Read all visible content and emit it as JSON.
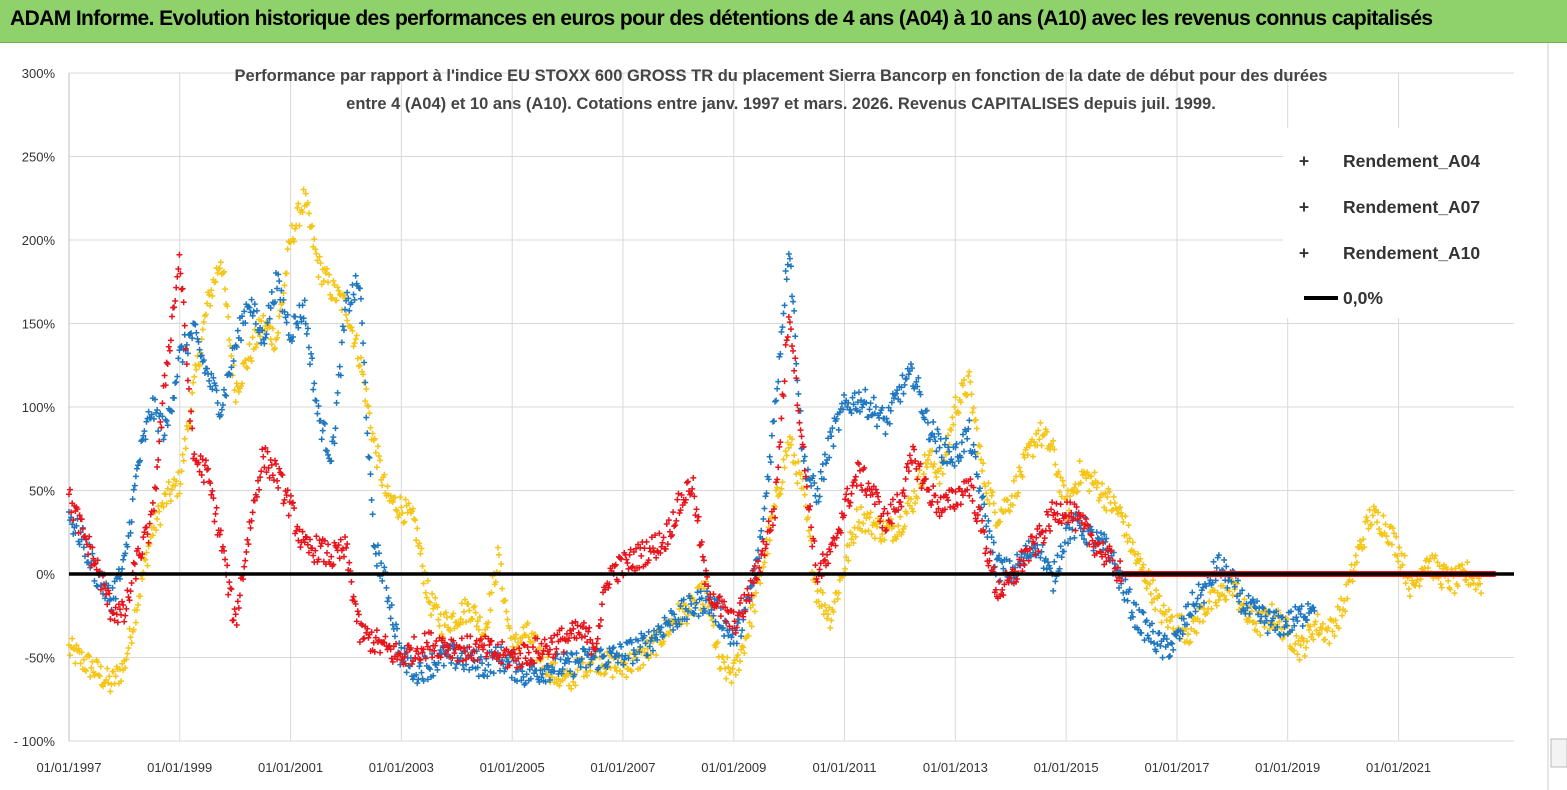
{
  "header": {
    "title": "ADAM Informe. Evolution historique des performances en euros pour des détentions de 4 ans (A04) à 10 ans (A10) avec les revenus connus capitalisés"
  },
  "chart_data": {
    "type": "scatter",
    "title_line1": "Performance par rapport à l'indice EU STOXX 600 GROSS TR  du placement Sierra Bancorp en fonction de la date de début pour des durées",
    "title_line2": "entre 4 (A04) et 10 ans (A10). Cotations entre janv. 1997 et mars. 2026. Revenus CAPITALISES depuis juil. 1999.",
    "ylim": [
      -100,
      300
    ],
    "xlim": [
      "1997-01-01",
      "2023-02-01"
    ],
    "y_ticks": [
      "- 100%",
      "-50%",
      "0%",
      "50%",
      "100%",
      "150%",
      "200%",
      "250%",
      "300%"
    ],
    "y_tick_values": [
      -100,
      -50,
      0,
      50,
      100,
      150,
      200,
      250,
      300
    ],
    "x_ticks": [
      "01/01/1997",
      "01/01/1999",
      "01/01/2001",
      "01/01/2003",
      "01/01/2005",
      "01/01/2007",
      "01/01/2009",
      "01/01/2011",
      "01/01/2013",
      "01/01/2015",
      "01/01/2017",
      "01/01/2019",
      "01/01/2021"
    ],
    "grid": true,
    "legend_position": "top-right",
    "colors": {
      "Rendement_A04": "#f5c518",
      "Rendement_A07": "#1f77c0",
      "Rendement_A10": "#e8141c",
      "zero_line": "#000000"
    },
    "series": [
      {
        "name": "Rendement_A04",
        "x": [
          "1997-01",
          "1997-04",
          "1997-07",
          "1997-10",
          "1998-01",
          "1998-04",
          "1998-07",
          "1998-10",
          "1999-01",
          "1999-04",
          "1999-07",
          "1999-10",
          "2000-01",
          "2000-04",
          "2000-07",
          "2000-10",
          "2001-01",
          "2001-04",
          "2001-07",
          "2001-10",
          "2002-01",
          "2002-04",
          "2002-07",
          "2002-10",
          "2003-01",
          "2003-04",
          "2003-07",
          "2003-10",
          "2004-01",
          "2004-04",
          "2004-07",
          "2004-10",
          "2005-01",
          "2005-04",
          "2005-07",
          "2005-10",
          "2006-01",
          "2006-04",
          "2006-07",
          "2006-10",
          "2007-01",
          "2007-04",
          "2007-07",
          "2007-10",
          "2008-01",
          "2008-04",
          "2008-07",
          "2008-10",
          "2009-01",
          "2009-04",
          "2009-07",
          "2009-10",
          "2010-01",
          "2010-04",
          "2010-07",
          "2010-10",
          "2011-01",
          "2011-04",
          "2011-07",
          "2011-10",
          "2012-01",
          "2012-04",
          "2012-07",
          "2012-10",
          "2013-01",
          "2013-04",
          "2013-07",
          "2013-10",
          "2014-01",
          "2014-04",
          "2014-07",
          "2014-10",
          "2015-01",
          "2015-04",
          "2015-07",
          "2015-10",
          "2016-01",
          "2016-04",
          "2016-07",
          "2016-10",
          "2017-01",
          "2017-04",
          "2017-07",
          "2017-10",
          "2018-01",
          "2018-04",
          "2018-07",
          "2018-10",
          "2019-01",
          "2019-04",
          "2019-07",
          "2019-10",
          "2020-01",
          "2020-04",
          "2020-07",
          "2020-10",
          "2021-01",
          "2021-04",
          "2021-07",
          "2021-10",
          "2022-01",
          "2022-04",
          "2022-07"
        ],
        "values": [
          -45,
          -52,
          -58,
          -66,
          -55,
          -15,
          25,
          45,
          55,
          110,
          160,
          190,
          110,
          130,
          150,
          140,
          200,
          225,
          185,
          170,
          160,
          130,
          80,
          45,
          40,
          30,
          -15,
          -30,
          -25,
          -20,
          -35,
          10,
          -45,
          -35,
          -48,
          -60,
          -65,
          -55,
          -50,
          -55,
          -55,
          -52,
          -45,
          -35,
          -25,
          -20,
          -10,
          -55,
          -60,
          -35,
          0,
          40,
          80,
          50,
          -10,
          -25,
          5,
          35,
          30,
          25,
          30,
          45,
          70,
          60,
          100,
          115,
          60,
          35,
          45,
          65,
          85,
          75,
          40,
          60,
          55,
          45,
          35,
          10,
          -5,
          -25,
          -30,
          -35,
          -20,
          -15,
          -5,
          -25,
          -30,
          -25,
          -35,
          -45,
          -30,
          -35,
          -20,
          10,
          35,
          30,
          15,
          -10,
          10,
          0,
          -5,
          0,
          -5
        ]
      },
      {
        "name": "Rendement_A07",
        "x": [
          "1997-01",
          "1997-04",
          "1997-07",
          "1997-10",
          "1998-01",
          "1998-04",
          "1998-07",
          "1998-10",
          "1999-01",
          "1999-04",
          "1999-07",
          "1999-10",
          "2000-01",
          "2000-04",
          "2000-07",
          "2000-10",
          "2001-01",
          "2001-04",
          "2001-07",
          "2001-10",
          "2002-01",
          "2002-04",
          "2002-07",
          "2002-10",
          "2003-01",
          "2003-04",
          "2003-07",
          "2003-10",
          "2004-01",
          "2004-04",
          "2004-07",
          "2004-10",
          "2005-01",
          "2005-04",
          "2005-07",
          "2005-10",
          "2006-01",
          "2006-04",
          "2006-07",
          "2006-10",
          "2007-01",
          "2007-04",
          "2007-07",
          "2007-10",
          "2008-01",
          "2008-04",
          "2008-07",
          "2008-10",
          "2009-01",
          "2009-04",
          "2009-07",
          "2009-10",
          "2010-01",
          "2010-04",
          "2010-07",
          "2010-10",
          "2011-01",
          "2011-04",
          "2011-07",
          "2011-10",
          "2012-01",
          "2012-04",
          "2012-07",
          "2012-10",
          "2013-01",
          "2013-04",
          "2013-07",
          "2013-10",
          "2014-01",
          "2014-04",
          "2014-07",
          "2014-10",
          "2015-01",
          "2015-04",
          "2015-07",
          "2015-10",
          "2016-01",
          "2016-04",
          "2016-07",
          "2016-10",
          "2017-01",
          "2017-04",
          "2017-07",
          "2017-10",
          "2018-01",
          "2018-04",
          "2018-07",
          "2018-10",
          "2019-01",
          "2019-04",
          "2019-07"
        ],
        "values": [
          35,
          20,
          0,
          -15,
          5,
          65,
          100,
          85,
          130,
          145,
          120,
          100,
          135,
          165,
          140,
          175,
          145,
          160,
          95,
          70,
          160,
          175,
          20,
          -10,
          -50,
          -58,
          -55,
          -50,
          -50,
          -52,
          -55,
          -50,
          -55,
          -60,
          -58,
          -55,
          -55,
          -52,
          -50,
          -50,
          -48,
          -45,
          -40,
          -30,
          -25,
          -20,
          -15,
          -25,
          -40,
          -20,
          20,
          100,
          200,
          70,
          45,
          80,
          100,
          105,
          100,
          90,
          110,
          120,
          90,
          75,
          70,
          85,
          40,
          5,
          0,
          10,
          20,
          -5,
          25,
          30,
          20,
          15,
          -5,
          -25,
          -35,
          -45,
          -40,
          -20,
          -10,
          5,
          -5,
          -20,
          -25,
          -30,
          -30,
          -25,
          -15
        ]
      },
      {
        "name": "Rendement_A10",
        "x": [
          "1997-01",
          "1997-04",
          "1997-07",
          "1997-10",
          "1998-01",
          "1998-04",
          "1998-07",
          "1998-10",
          "1999-01",
          "1999-04",
          "1999-07",
          "1999-10",
          "2000-01",
          "2000-04",
          "2000-07",
          "2000-10",
          "2001-01",
          "2001-04",
          "2001-07",
          "2001-10",
          "2002-01",
          "2002-04",
          "2002-07",
          "2002-10",
          "2003-01",
          "2003-04",
          "2003-07",
          "2003-10",
          "2004-01",
          "2004-04",
          "2004-07",
          "2004-10",
          "2005-01",
          "2005-04",
          "2005-07",
          "2005-10",
          "2006-01",
          "2006-04",
          "2006-07",
          "2006-10",
          "2007-01",
          "2007-04",
          "2007-07",
          "2007-10",
          "2008-01",
          "2008-04",
          "2008-07",
          "2008-10",
          "2009-01",
          "2009-04",
          "2009-07",
          "2009-10",
          "2010-01",
          "2010-04",
          "2010-07",
          "2010-10",
          "2011-01",
          "2011-04",
          "2011-07",
          "2011-10",
          "2012-01",
          "2012-04",
          "2012-07",
          "2012-10",
          "2013-01",
          "2013-04",
          "2013-07",
          "2013-10",
          "2014-01",
          "2014-04",
          "2014-07",
          "2014-10",
          "2015-01",
          "2015-04",
          "2015-07",
          "2015-10",
          "2016-01",
          "2016-04",
          "2016-07",
          "2016-10",
          "2017-01",
          "2017-04",
          "2017-07",
          "2017-10",
          "2018-01",
          "2018-04",
          "2018-07",
          "2018-10",
          "2019-01",
          "2019-04",
          "2019-07",
          "2019-10",
          "2020-01",
          "2020-04",
          "2020-07",
          "2020-10",
          "2021-01",
          "2021-04",
          "2021-07",
          "2021-10",
          "2022-01",
          "2022-04",
          "2022-07",
          "2022-10"
        ],
        "values": [
          45,
          25,
          5,
          -20,
          -25,
          10,
          30,
          120,
          190,
          70,
          60,
          20,
          -30,
          25,
          70,
          60,
          40,
          15,
          15,
          10,
          15,
          -35,
          -40,
          -45,
          -50,
          -45,
          -42,
          -42,
          -44,
          -45,
          -45,
          -48,
          -50,
          -48,
          -45,
          -42,
          -38,
          -35,
          -42,
          0,
          5,
          10,
          15,
          20,
          40,
          55,
          -5,
          -20,
          -30,
          -15,
          10,
          40,
          160,
          75,
          0,
          10,
          40,
          60,
          50,
          30,
          45,
          70,
          50,
          40,
          45,
          55,
          25,
          -10,
          -5,
          10,
          20,
          35,
          40,
          30,
          20,
          10,
          0,
          0,
          0,
          0,
          0,
          0,
          0,
          0,
          0,
          0,
          0,
          0,
          0,
          0,
          0,
          0,
          0,
          0,
          0,
          0,
          0,
          0,
          0,
          0,
          0,
          0,
          0,
          0
        ]
      }
    ]
  },
  "legend": {
    "items": [
      {
        "label": "Rendement_A04",
        "glyph": "plus-marker"
      },
      {
        "label": "Rendement_A07",
        "glyph": "plus-marker"
      },
      {
        "label": "Rendement_A10",
        "glyph": "plus-marker"
      },
      {
        "label": "0,0%",
        "glyph": "line"
      }
    ]
  }
}
